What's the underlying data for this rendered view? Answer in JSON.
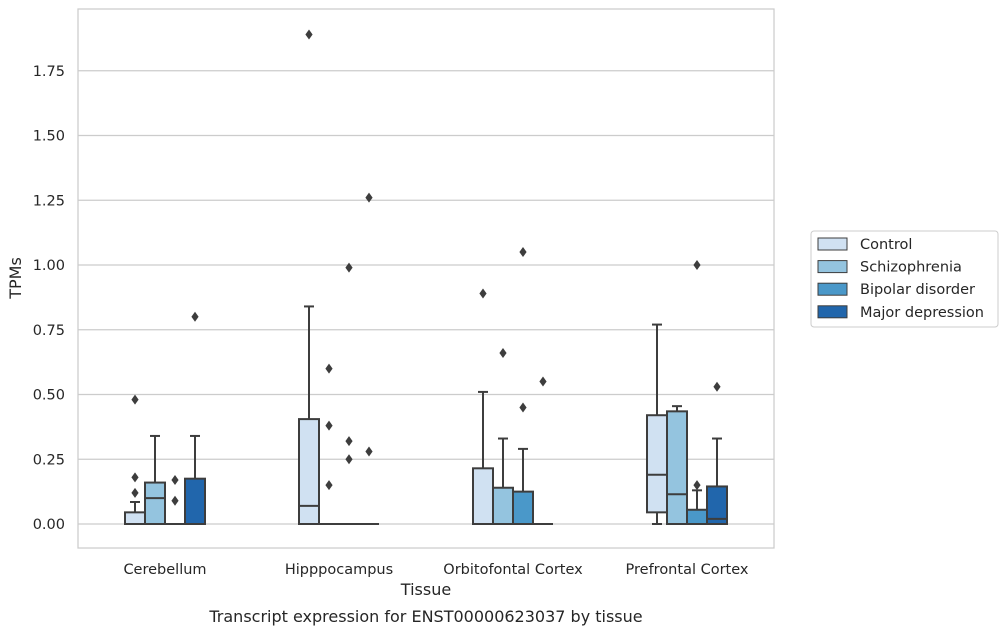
{
  "chart_data": {
    "type": "box",
    "caption": "Transcript expression for ENST00000623037 by tissue",
    "xlabel": "Tissue",
    "ylabel": "TPMs",
    "ylim": [
      -0.09,
      1.985
    ],
    "yticks": [
      "0.00",
      "0.25",
      "0.50",
      "0.75",
      "1.00",
      "1.25",
      "1.50",
      "1.75"
    ],
    "ytick_values": [
      0,
      0.25,
      0.5,
      0.75,
      1.0,
      1.25,
      1.5,
      1.75
    ],
    "grid": true,
    "legend_position": "right",
    "categories": [
      "Cerebellum",
      "Hipppocampus",
      "Orbitofontal Cortex",
      "Prefrontal Cortex"
    ],
    "series": [
      {
        "name": "Control",
        "color": "#d0e1f2",
        "boxes": [
          {
            "whisker_low": 0,
            "q1": 0,
            "median": 0,
            "q3": 0.045,
            "whisker_high": 0.085,
            "outliers": [
              0.12,
              0.18,
              0.48
            ]
          },
          {
            "whisker_low": 0,
            "q1": 0,
            "median": 0.07,
            "q3": 0.405,
            "whisker_high": 0.84,
            "outliers": [
              1.89
            ]
          },
          {
            "whisker_low": 0,
            "q1": 0,
            "median": 0,
            "q3": 0.215,
            "whisker_high": 0.51,
            "outliers": [
              0.89
            ]
          },
          {
            "whisker_low": 0,
            "q1": 0.045,
            "median": 0.19,
            "q3": 0.42,
            "whisker_high": 0.77,
            "outliers": []
          }
        ]
      },
      {
        "name": "Schizophrenia",
        "color": "#94c4df",
        "boxes": [
          {
            "whisker_low": 0,
            "q1": 0,
            "median": 0.1,
            "q3": 0.16,
            "whisker_high": 0.34,
            "outliers": []
          },
          {
            "whisker_low": 0,
            "q1": 0,
            "median": 0,
            "q3": 0,
            "whisker_high": 0,
            "outliers": [
              0.15,
              0.38,
              0.6
            ]
          },
          {
            "whisker_low": 0,
            "q1": 0,
            "median": 0,
            "q3": 0.14,
            "whisker_high": 0.33,
            "outliers": [
              0.66
            ]
          },
          {
            "whisker_low": 0,
            "q1": 0,
            "median": 0.115,
            "q3": 0.435,
            "whisker_high": 0.455,
            "outliers": []
          }
        ]
      },
      {
        "name": "Bipolar disorder",
        "color": "#4a98c9",
        "boxes": [
          {
            "whisker_low": 0,
            "q1": 0,
            "median": 0,
            "q3": 0,
            "whisker_high": 0,
            "outliers": [
              0.09,
              0.17
            ]
          },
          {
            "whisker_low": 0,
            "q1": 0,
            "median": 0,
            "q3": 0,
            "whisker_high": 0,
            "outliers": [
              0.25,
              0.32,
              0.99
            ]
          },
          {
            "whisker_low": 0,
            "q1": 0,
            "median": 0,
            "q3": 0.125,
            "whisker_high": 0.29,
            "outliers": [
              0.45,
              1.05
            ]
          },
          {
            "whisker_low": 0,
            "q1": 0,
            "median": 0,
            "q3": 0.055,
            "whisker_high": 0.13,
            "outliers": [
              0.15,
              1.0
            ]
          }
        ]
      },
      {
        "name": "Major depression",
        "color": "#2166ac",
        "boxes": [
          {
            "whisker_low": 0,
            "q1": 0,
            "median": 0,
            "q3": 0.175,
            "whisker_high": 0.34,
            "outliers": [
              0.8
            ]
          },
          {
            "whisker_low": 0,
            "q1": 0,
            "median": 0,
            "q3": 0,
            "whisker_high": 0,
            "outliers": [
              0.28,
              1.26
            ]
          },
          {
            "whisker_low": 0,
            "q1": 0,
            "median": 0,
            "q3": 0,
            "whisker_high": 0,
            "outliers": [
              0.55
            ]
          },
          {
            "whisker_low": 0,
            "q1": 0,
            "median": 0.02,
            "q3": 0.145,
            "whisker_high": 0.33,
            "outliers": [
              0.53
            ]
          }
        ]
      }
    ]
  }
}
